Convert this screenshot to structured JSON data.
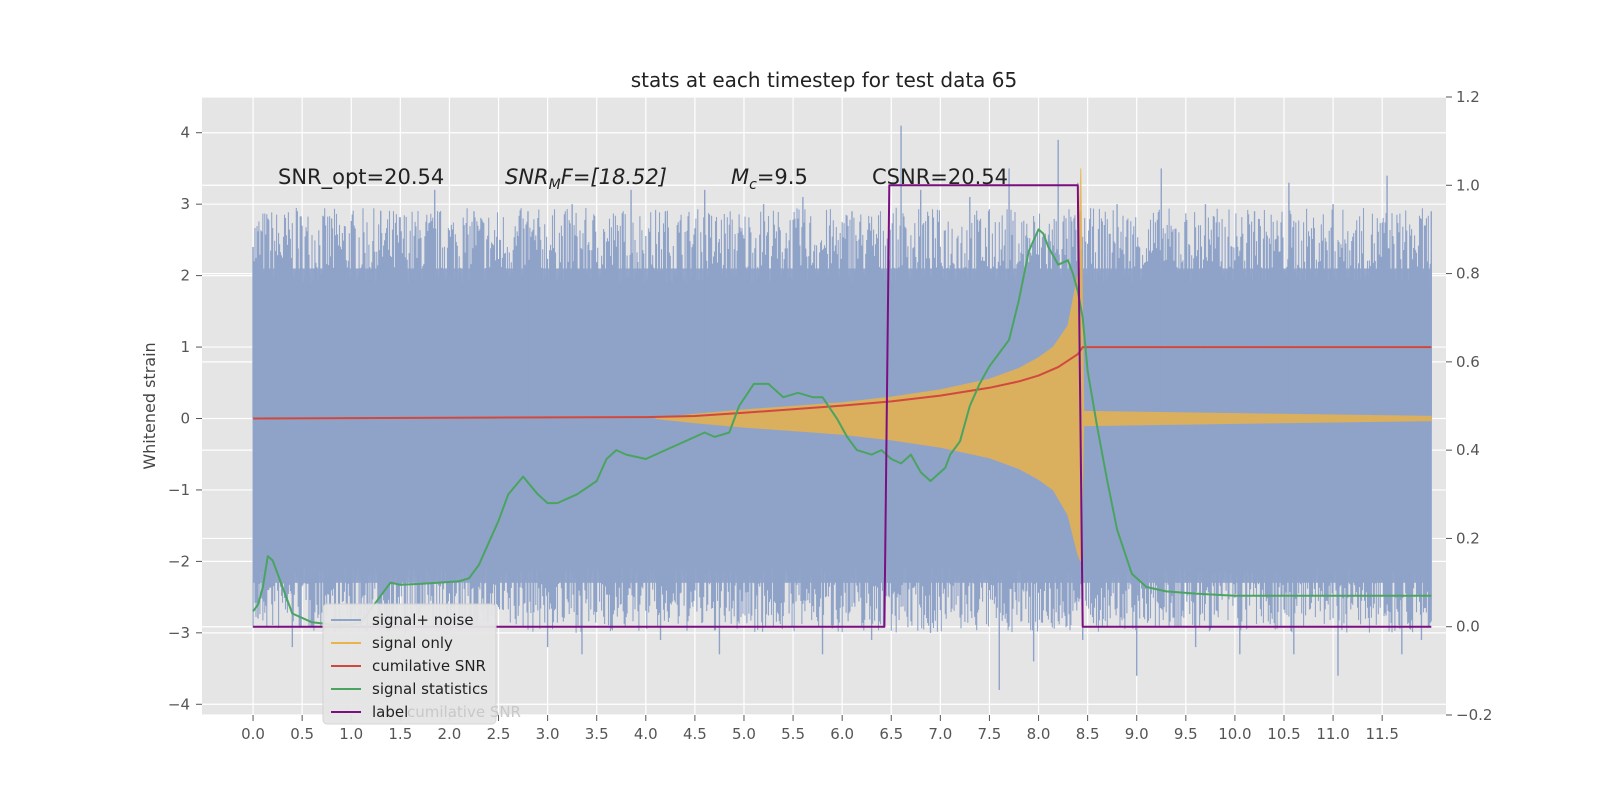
{
  "chart_data": {
    "type": "line",
    "title": "stats at each timestep for test data 65",
    "ylabel": "Whitened strain",
    "xlim": [
      -0.52,
      12.15
    ],
    "ylim": [
      -4.15,
      4.5
    ],
    "y2lim": [
      -0.2,
      1.2
    ],
    "x_ticks": [
      "0.0",
      "0.5",
      "1.0",
      "1.5",
      "2.0",
      "2.5",
      "3.0",
      "3.5",
      "4.0",
      "4.5",
      "5.0",
      "5.5",
      "6.0",
      "6.5",
      "7.0",
      "7.5",
      "8.0",
      "8.5",
      "9.0",
      "9.5",
      "10.0",
      "10.5",
      "11.0",
      "11.5"
    ],
    "x_tick_values": [
      0,
      0.5,
      1,
      1.5,
      2,
      2.5,
      3,
      3.5,
      4,
      4.5,
      5,
      5.5,
      6,
      6.5,
      7,
      7.5,
      8,
      8.5,
      9,
      9.5,
      10,
      10.5,
      11,
      11.5
    ],
    "y_ticks": [
      "4",
      "3",
      "2",
      "1",
      "0",
      "−1",
      "−2",
      "−3",
      "−4"
    ],
    "y_tick_values": [
      4,
      3,
      2,
      1,
      0,
      -1,
      -2,
      -3,
      -4
    ],
    "y2_ticks": [
      "1.2",
      "1.0",
      "0.8",
      "0.6",
      "0.4",
      "0.2",
      "0.0",
      "−0.2"
    ],
    "y2_tick_values": [
      1.2,
      1.0,
      0.8,
      0.6,
      0.4,
      0.2,
      0.0,
      -0.2
    ],
    "grid": true,
    "legend_position": "lower-left",
    "annotations": {
      "snr_opt": "SNR_opt=20.54",
      "snr_mf_main": "SNR",
      "snr_mf_sub": "M",
      "snr_mf_tail": "F=[18.52]",
      "mc_main": "M",
      "mc_sub": "c",
      "mc_tail": "=9.5",
      "csnr": "CSNR=20.54"
    },
    "legend_hidden_text": "cumilative SNR",
    "series": [
      {
        "name": "signal+ noise",
        "color": "#8fa3c9",
        "axis": "left",
        "x_range": [
          0,
          12
        ],
        "envelope_upper": [
          [
            0,
            2.1
          ],
          [
            12,
            2.1
          ]
        ],
        "envelope_lower": [
          [
            0,
            -2.3
          ],
          [
            12,
            -2.3
          ]
        ],
        "spikes_upper": [
          [
            0.0,
            2.4
          ],
          [
            0.15,
            2.8
          ],
          [
            0.45,
            2.9
          ],
          [
            0.8,
            2.8
          ],
          [
            1.3,
            2.9
          ],
          [
            1.85,
            3.2
          ],
          [
            2.25,
            2.9
          ],
          [
            2.8,
            2.9
          ],
          [
            3.25,
            3.0
          ],
          [
            3.85,
            3.2
          ],
          [
            4.2,
            2.9
          ],
          [
            4.6,
            3.2
          ],
          [
            5.2,
            3.0
          ],
          [
            5.6,
            3.1
          ],
          [
            6.1,
            2.9
          ],
          [
            6.6,
            4.1
          ],
          [
            6.8,
            3.2
          ],
          [
            7.3,
            3.1
          ],
          [
            7.7,
            3.5
          ],
          [
            8.2,
            3.9
          ],
          [
            8.4,
            3.3
          ],
          [
            8.8,
            3.0
          ],
          [
            9.25,
            3.5
          ],
          [
            9.7,
            3.0
          ],
          [
            10.2,
            2.9
          ],
          [
            10.55,
            3.3
          ],
          [
            11.0,
            3.0
          ],
          [
            11.55,
            3.4
          ],
          [
            12.0,
            2.9
          ]
        ],
        "spikes_lower": [
          [
            0.05,
            -2.8
          ],
          [
            0.4,
            -3.2
          ],
          [
            1.1,
            -2.9
          ],
          [
            1.55,
            -3.0
          ],
          [
            2.1,
            -2.9
          ],
          [
            3.0,
            -3.2
          ],
          [
            3.35,
            -3.3
          ],
          [
            4.15,
            -3.1
          ],
          [
            4.75,
            -3.3
          ],
          [
            5.8,
            -3.3
          ],
          [
            6.3,
            -3.1
          ],
          [
            6.9,
            -3.0
          ],
          [
            7.6,
            -3.8
          ],
          [
            7.95,
            -3.4
          ],
          [
            8.45,
            -3.1
          ],
          [
            9.0,
            -3.6
          ],
          [
            9.6,
            -3.2
          ],
          [
            10.05,
            -3.3
          ],
          [
            10.6,
            -3.3
          ],
          [
            11.05,
            -3.6
          ],
          [
            11.7,
            -3.3
          ],
          [
            11.9,
            -3.1
          ]
        ]
      },
      {
        "name": "signal only",
        "color": "#e8b24c",
        "axis": "left",
        "upper": [
          [
            4.1,
            0.0
          ],
          [
            4.5,
            0.06
          ],
          [
            5.0,
            0.12
          ],
          [
            5.5,
            0.17
          ],
          [
            6.0,
            0.22
          ],
          [
            6.5,
            0.3
          ],
          [
            7.0,
            0.4
          ],
          [
            7.5,
            0.55
          ],
          [
            7.8,
            0.7
          ],
          [
            8.0,
            0.85
          ],
          [
            8.15,
            1.0
          ],
          [
            8.3,
            1.3
          ],
          [
            8.4,
            2.0
          ],
          [
            8.43,
            3.5
          ],
          [
            8.46,
            0.1
          ],
          [
            12.0,
            0.03
          ]
        ],
        "lower": [
          [
            4.1,
            0.0
          ],
          [
            4.5,
            -0.06
          ],
          [
            5.0,
            -0.12
          ],
          [
            5.5,
            -0.17
          ],
          [
            6.0,
            -0.22
          ],
          [
            6.5,
            -0.3
          ],
          [
            7.0,
            -0.4
          ],
          [
            7.5,
            -0.55
          ],
          [
            7.8,
            -0.7
          ],
          [
            8.0,
            -0.85
          ],
          [
            8.15,
            -1.0
          ],
          [
            8.3,
            -1.35
          ],
          [
            8.4,
            -1.9
          ],
          [
            8.43,
            -2.0
          ],
          [
            8.46,
            -0.1
          ],
          [
            12.0,
            -0.03
          ]
        ]
      },
      {
        "name": "cumilative SNR",
        "color": "#d1493e",
        "axis": "left",
        "points": [
          [
            0,
            0.0
          ],
          [
            1,
            0.005
          ],
          [
            2,
            0.01
          ],
          [
            3,
            0.015
          ],
          [
            4,
            0.02
          ],
          [
            4.5,
            0.035
          ],
          [
            5,
            0.08
          ],
          [
            5.5,
            0.13
          ],
          [
            6,
            0.18
          ],
          [
            6.5,
            0.24
          ],
          [
            7,
            0.32
          ],
          [
            7.5,
            0.43
          ],
          [
            7.8,
            0.52
          ],
          [
            8.0,
            0.6
          ],
          [
            8.2,
            0.72
          ],
          [
            8.4,
            0.9
          ],
          [
            8.45,
            1.0
          ],
          [
            12.0,
            1.0
          ]
        ]
      },
      {
        "name": "signal statistics",
        "color": "#4aa460",
        "axis": "right",
        "points": [
          [
            0,
            0.035
          ],
          [
            0.05,
            0.05
          ],
          [
            0.1,
            0.09
          ],
          [
            0.15,
            0.16
          ],
          [
            0.2,
            0.15
          ],
          [
            0.3,
            0.09
          ],
          [
            0.4,
            0.03
          ],
          [
            0.6,
            0.01
          ],
          [
            0.8,
            0.005
          ],
          [
            1.0,
            0.005
          ],
          [
            1.1,
            0.01
          ],
          [
            1.3,
            0.07
          ],
          [
            1.4,
            0.1
          ],
          [
            1.5,
            0.095
          ],
          [
            1.7,
            0.097
          ],
          [
            1.9,
            0.1
          ],
          [
            2.1,
            0.103
          ],
          [
            2.2,
            0.11
          ],
          [
            2.3,
            0.14
          ],
          [
            2.4,
            0.19
          ],
          [
            2.5,
            0.24
          ],
          [
            2.6,
            0.3
          ],
          [
            2.75,
            0.34
          ],
          [
            2.9,
            0.3
          ],
          [
            3.0,
            0.28
          ],
          [
            3.1,
            0.28
          ],
          [
            3.2,
            0.29
          ],
          [
            3.3,
            0.3
          ],
          [
            3.5,
            0.33
          ],
          [
            3.6,
            0.38
          ],
          [
            3.7,
            0.4
          ],
          [
            3.8,
            0.39
          ],
          [
            4.0,
            0.38
          ],
          [
            4.2,
            0.4
          ],
          [
            4.4,
            0.42
          ],
          [
            4.6,
            0.44
          ],
          [
            4.7,
            0.43
          ],
          [
            4.85,
            0.44
          ],
          [
            4.95,
            0.5
          ],
          [
            5.1,
            0.55
          ],
          [
            5.25,
            0.55
          ],
          [
            5.4,
            0.52
          ],
          [
            5.55,
            0.53
          ],
          [
            5.7,
            0.52
          ],
          [
            5.8,
            0.52
          ],
          [
            5.95,
            0.47
          ],
          [
            6.05,
            0.43
          ],
          [
            6.15,
            0.4
          ],
          [
            6.3,
            0.39
          ],
          [
            6.4,
            0.4
          ],
          [
            6.5,
            0.38
          ],
          [
            6.6,
            0.37
          ],
          [
            6.7,
            0.39
          ],
          [
            6.8,
            0.35
          ],
          [
            6.9,
            0.33
          ],
          [
            6.95,
            0.34
          ],
          [
            7.05,
            0.36
          ],
          [
            7.1,
            0.39
          ],
          [
            7.2,
            0.42
          ],
          [
            7.3,
            0.5
          ],
          [
            7.4,
            0.55
          ],
          [
            7.5,
            0.59
          ],
          [
            7.6,
            0.62
          ],
          [
            7.7,
            0.65
          ],
          [
            7.8,
            0.74
          ],
          [
            7.9,
            0.85
          ],
          [
            8.0,
            0.9
          ],
          [
            8.05,
            0.89
          ],
          [
            8.1,
            0.86
          ],
          [
            8.2,
            0.82
          ],
          [
            8.3,
            0.83
          ],
          [
            8.35,
            0.8
          ],
          [
            8.4,
            0.76
          ],
          [
            8.45,
            0.7
          ],
          [
            8.5,
            0.58
          ],
          [
            8.6,
            0.45
          ],
          [
            8.7,
            0.33
          ],
          [
            8.8,
            0.22
          ],
          [
            8.95,
            0.12
          ],
          [
            9.1,
            0.09
          ],
          [
            9.3,
            0.08
          ],
          [
            9.6,
            0.075
          ],
          [
            10.0,
            0.07
          ],
          [
            10.5,
            0.07
          ],
          [
            11.0,
            0.07
          ],
          [
            11.5,
            0.07
          ],
          [
            12.0,
            0.07
          ]
        ]
      },
      {
        "name": "label",
        "color": "#7b0f82",
        "axis": "right",
        "points": [
          [
            0,
            0.0
          ],
          [
            6.43,
            0.0
          ],
          [
            6.48,
            1.0
          ],
          [
            8.4,
            1.0
          ],
          [
            8.45,
            0.0
          ],
          [
            12.0,
            0.0
          ]
        ]
      }
    ]
  }
}
